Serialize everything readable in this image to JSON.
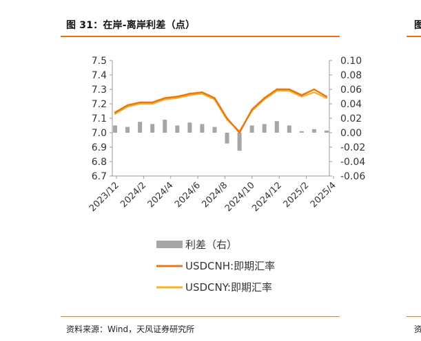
{
  "header": {
    "title": "图 31：在岸-离岸利差（点）",
    "right_fragment": "图"
  },
  "footer": {
    "source": "资料来源：Wind，天风证券研究所",
    "right_fragment": "资"
  },
  "colors": {
    "accent": "#e8741b",
    "usdcnh": "#e8741b",
    "usdcny": "#f7b21f",
    "spread": "#a6a6a6"
  },
  "chart_data": {
    "type": "line",
    "title": "",
    "x_ticks": [
      "2023/12",
      "2024/2",
      "2024/4",
      "2024/6",
      "2024/8",
      "2024/10",
      "2024/12",
      "2025/2",
      "2025/4"
    ],
    "left_axis": {
      "ylim": [
        6.7,
        7.5
      ],
      "ticks": [
        "7.5",
        "7.4",
        "7.3",
        "7.2",
        "7.1",
        "7.0",
        "6.9",
        "6.8",
        "6.7"
      ]
    },
    "right_axis": {
      "ylim": [
        -0.06,
        0.1
      ],
      "ticks": [
        "0.10",
        "0.08",
        "0.06",
        "0.04",
        "0.02",
        "0.00",
        "-0.02",
        "-0.04",
        "-0.06"
      ]
    },
    "x": [
      "2023/12",
      "2024/1",
      "2024/2",
      "2024/3",
      "2024/4",
      "2024/5",
      "2024/6",
      "2024/7",
      "2024/8",
      "2024/9",
      "2024/10",
      "2024/11",
      "2024/12",
      "2025/1",
      "2025/2",
      "2025/3",
      "2025/4",
      "2025/5"
    ],
    "series": [
      {
        "name": "利差（右）",
        "axis": "right",
        "style": "bar",
        "values": [
          0.01,
          0.008,
          0.015,
          0.012,
          0.018,
          0.01,
          0.014,
          0.012,
          0.008,
          -0.015,
          -0.025,
          0.01,
          0.012,
          0.016,
          0.01,
          0.002,
          0.005,
          0.003
        ]
      },
      {
        "name": "USDCNH:即期汇率",
        "axis": "left",
        "style": "line",
        "values": [
          7.14,
          7.19,
          7.21,
          7.21,
          7.24,
          7.25,
          7.27,
          7.28,
          7.24,
          7.1,
          7.0,
          7.16,
          7.24,
          7.3,
          7.3,
          7.26,
          7.3,
          7.25
        ]
      },
      {
        "name": "USDCNY:即期汇率",
        "axis": "left",
        "style": "line",
        "values": [
          7.13,
          7.18,
          7.2,
          7.2,
          7.23,
          7.24,
          7.26,
          7.27,
          7.23,
          7.09,
          7.01,
          7.15,
          7.23,
          7.29,
          7.29,
          7.25,
          7.28,
          7.24
        ]
      }
    ],
    "legend": {
      "placement": "bottom",
      "entries": [
        "利差（右）",
        "USDCNH:即期汇率",
        "USDCNY:即期汇率"
      ]
    },
    "grid": false
  }
}
